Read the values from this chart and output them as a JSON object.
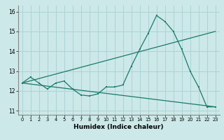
{
  "xlabel": "Humidex (Indice chaleur)",
  "xlim": [
    -0.5,
    23.5
  ],
  "ylim": [
    10.8,
    16.3
  ],
  "yticks": [
    11,
    12,
    13,
    14,
    15,
    16
  ],
  "xticks": [
    0,
    1,
    2,
    3,
    4,
    5,
    6,
    7,
    8,
    9,
    10,
    11,
    12,
    13,
    14,
    15,
    16,
    17,
    18,
    19,
    20,
    21,
    22,
    23
  ],
  "bg_color": "#cce8e8",
  "grid_color": "#aad4d4",
  "line_color": "#1a7a6a",
  "line1_x": [
    0,
    1,
    2,
    3,
    4,
    5,
    6,
    7,
    8,
    9,
    10,
    11,
    12,
    13,
    14,
    15,
    16,
    17,
    18,
    19,
    20,
    21,
    22,
    23
  ],
  "line1_y": [
    12.4,
    12.7,
    12.4,
    12.1,
    12.4,
    12.5,
    12.1,
    11.8,
    11.75,
    11.85,
    12.2,
    12.2,
    12.3,
    13.25,
    14.1,
    14.9,
    15.8,
    15.5,
    15.0,
    14.1,
    13.0,
    12.2,
    11.2,
    11.2
  ],
  "line2_x": [
    0,
    23
  ],
  "line2_y": [
    12.4,
    15.0
  ],
  "line3_x": [
    0,
    23
  ],
  "line3_y": [
    12.4,
    11.2
  ]
}
